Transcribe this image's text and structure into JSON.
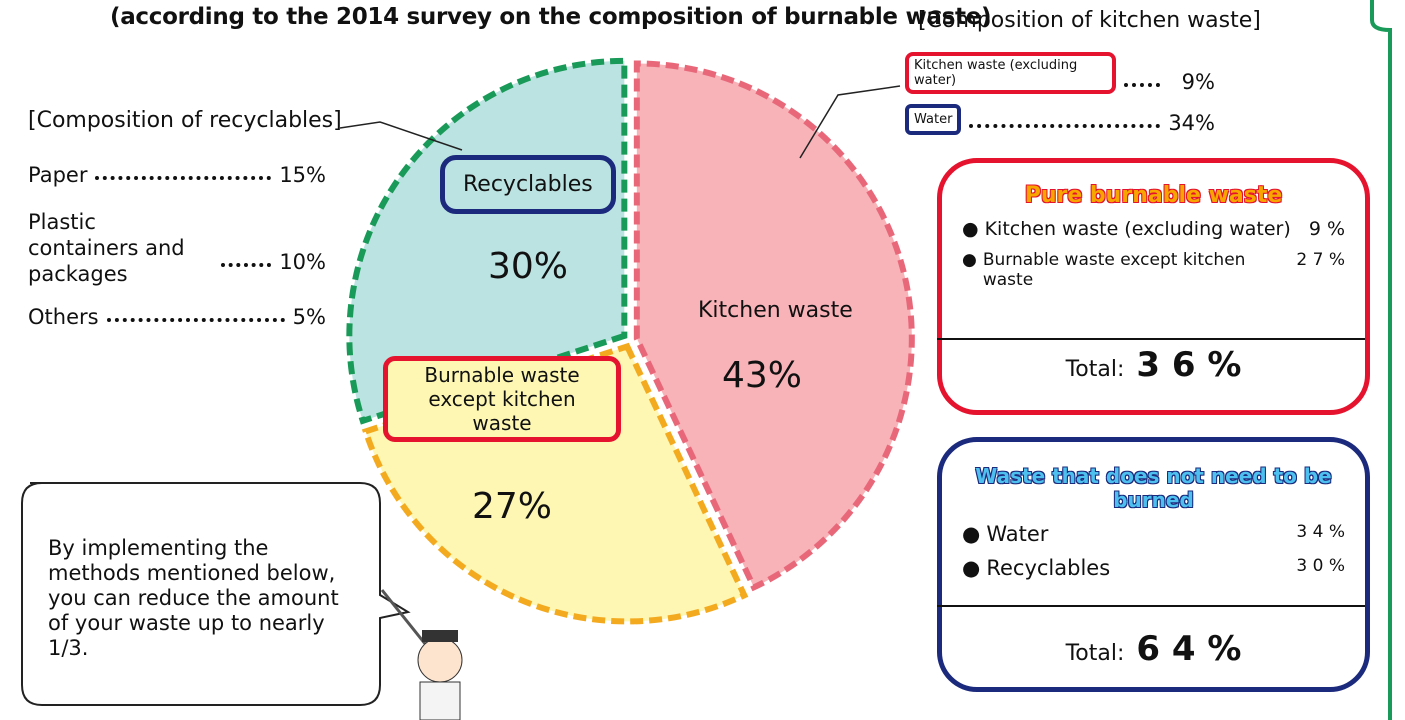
{
  "title": "(according to the 2014 survey on the composition of burnable waste)",
  "chart_data": {
    "type": "pie",
    "categories": [
      "Kitchen waste",
      "Burnable waste except kitchen waste",
      "Recyclables"
    ],
    "values": [
      43,
      27,
      30
    ],
    "value_labels": [
      "43%",
      "27%",
      "30%"
    ],
    "colors": [
      "#f7b3b8",
      "#fdf7b3",
      "#bbe3e1"
    ],
    "border_colors": [
      "#e8687a",
      "#f4aa1f",
      "#1a9a58"
    ]
  },
  "recyclables": {
    "heading": "[Composition of recyclables]",
    "items": [
      {
        "label": "Paper",
        "value": "15%"
      },
      {
        "label": "Plastic containers and packages",
        "value": "10%"
      },
      {
        "label": "Others",
        "value": "5%"
      }
    ]
  },
  "kitchen": {
    "heading": "[Composition of kitchen waste]",
    "items": [
      {
        "label": "Kitchen waste (excluding water)",
        "value": "9%"
      },
      {
        "label": "Water",
        "value": "34%"
      }
    ]
  },
  "pure_burnable": {
    "title": "Pure burnable waste",
    "items": [
      {
        "label": "Kitchen waste (excluding water)",
        "value": "9 %"
      },
      {
        "label": "Burnable waste except kitchen waste",
        "value": "2 7 %"
      }
    ],
    "total_label": "Total:",
    "total": "3 6 %"
  },
  "not_burned": {
    "title": "Waste that does not need to be burned",
    "items": [
      {
        "label": "Water",
        "value": "3 4 %"
      },
      {
        "label": "Recyclables",
        "value": "3 0 %"
      }
    ],
    "total_label": "Total:",
    "total": "6 4 %"
  },
  "note": "By implementing the methods mentioned below, you can reduce the amount of your waste up to nearly 1/3."
}
